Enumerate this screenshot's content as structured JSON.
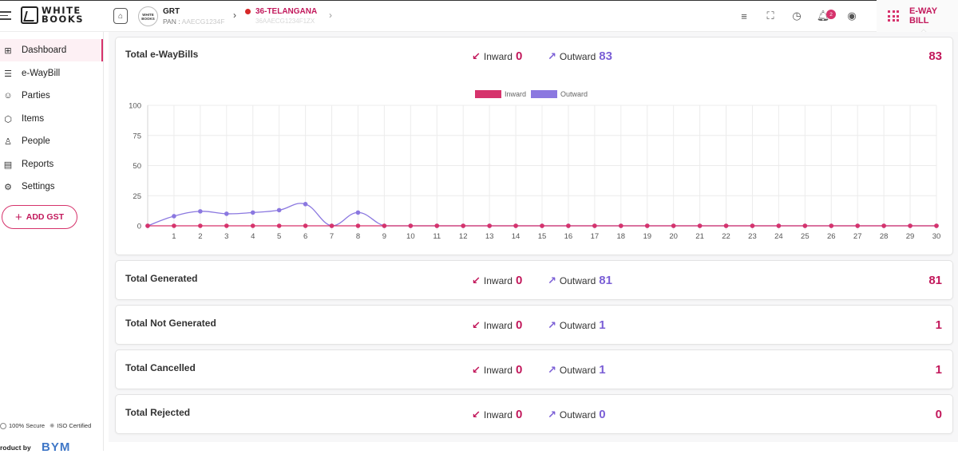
{
  "brand": {
    "logo_text_1": "WHITE",
    "logo_text_2": "BOOKS"
  },
  "header": {
    "org_avatar_text": "WHITE BOOKS",
    "org_name": "GRT",
    "org_pan_label": "PAN :",
    "org_pan_value": "AAECG1234F",
    "state": "36-TELANGANA",
    "state_sub": "36AAECG1234F1ZX",
    "notification_count": "2",
    "app_label": "E-WAY BILL"
  },
  "sidebar": {
    "items": [
      {
        "label": "Dashboard",
        "icon": "dashboard-icon",
        "active": true
      },
      {
        "label": "e-WayBill",
        "icon": "ewaybill-icon",
        "active": false
      },
      {
        "label": "Parties",
        "icon": "parties-icon",
        "active": false
      },
      {
        "label": "Items",
        "icon": "box-icon",
        "active": false
      },
      {
        "label": "People",
        "icon": "person-icon",
        "active": false
      },
      {
        "label": "Reports",
        "icon": "reports-icon",
        "active": false
      },
      {
        "label": "Settings",
        "icon": "gear-icon",
        "active": false
      }
    ],
    "add_gst_label": "ADD GST",
    "secure_text": "100% Secure",
    "iso_text": "ISO Certified",
    "product_by": "roduct by",
    "bym_text": "BYM"
  },
  "cards": [
    {
      "title": "Total e-WayBills",
      "inward_label": "Inward",
      "inward": "0",
      "outward_label": "Outward",
      "outward": "83",
      "total": "83"
    },
    {
      "title": "Total Generated",
      "inward_label": "Inward",
      "inward": "0",
      "outward_label": "Outward",
      "outward": "81",
      "total": "81"
    },
    {
      "title": "Total Not Generated",
      "inward_label": "Inward",
      "inward": "0",
      "outward_label": "Outward",
      "outward": "1",
      "total": "1"
    },
    {
      "title": "Total Cancelled",
      "inward_label": "Inward",
      "inward": "0",
      "outward_label": "Outward",
      "outward": "1",
      "total": "1"
    },
    {
      "title": "Total Rejected",
      "inward_label": "Inward",
      "inward": "0",
      "outward_label": "Outward",
      "outward": "0",
      "total": "0"
    }
  ],
  "colors": {
    "inward": "#d6336c",
    "outward": "#8b78e0"
  },
  "chart_data": {
    "type": "line",
    "title": "",
    "xlabel": "",
    "ylabel": "",
    "x": [
      0,
      1,
      2,
      3,
      4,
      5,
      6,
      7,
      8,
      9,
      10,
      11,
      12,
      13,
      14,
      15,
      16,
      17,
      18,
      19,
      20,
      21,
      22,
      23,
      24,
      25,
      26,
      27,
      28,
      29,
      30
    ],
    "x_tick_labels": [
      "",
      "1",
      "2",
      "3",
      "4",
      "5",
      "6",
      "7",
      "8",
      "9",
      "10",
      "11",
      "12",
      "13",
      "14",
      "15",
      "16",
      "17",
      "18",
      "19",
      "20",
      "21",
      "22",
      "23",
      "24",
      "25",
      "26",
      "27",
      "28",
      "29",
      "30"
    ],
    "ylim": [
      0,
      100
    ],
    "y_ticks": [
      0,
      25,
      50,
      75,
      100
    ],
    "grid": true,
    "legend_position": "top-center",
    "series": [
      {
        "name": "Inward",
        "color": "#d6336c",
        "values": [
          0,
          0,
          0,
          0,
          0,
          0,
          0,
          0,
          0,
          0,
          0,
          0,
          0,
          0,
          0,
          0,
          0,
          0,
          0,
          0,
          0,
          0,
          0,
          0,
          0,
          0,
          0,
          0,
          0,
          0,
          0
        ]
      },
      {
        "name": "Outward",
        "color": "#8b78e0",
        "values": [
          0,
          8,
          12,
          10,
          11,
          13,
          18,
          0,
          11,
          0,
          0,
          0,
          0,
          0,
          0,
          0,
          0,
          0,
          0,
          0,
          0,
          0,
          0,
          0,
          0,
          0,
          0,
          0,
          0,
          0,
          0
        ]
      }
    ]
  }
}
